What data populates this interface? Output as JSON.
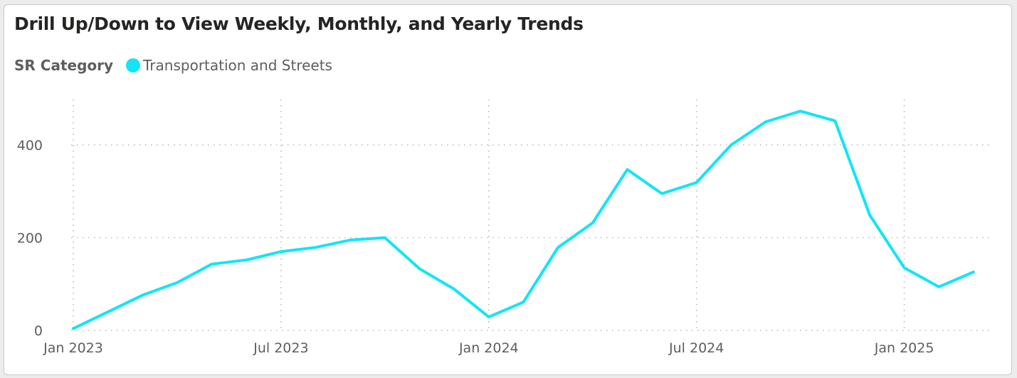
{
  "chart_data": {
    "type": "line",
    "title": "Drill Up/Down to View Weekly, Monthly, and Yearly Trends",
    "legend_title": "SR Category",
    "legend_position": "top-left",
    "grid": true,
    "x_tick_labels": [
      "Jan 2023",
      "Jul 2023",
      "Jan 2024",
      "Jul 2024",
      "Jan 2025"
    ],
    "y_ticks": [
      0,
      200,
      400
    ],
    "ylim": [
      0,
      500
    ],
    "x": [
      "2023-01",
      "2023-02",
      "2023-03",
      "2023-04",
      "2023-05",
      "2023-06",
      "2023-07",
      "2023-08",
      "2023-09",
      "2023-10",
      "2023-11",
      "2023-12",
      "2024-01",
      "2024-02",
      "2024-03",
      "2024-04",
      "2024-05",
      "2024-06",
      "2024-07",
      "2024-08",
      "2024-09",
      "2024-10",
      "2024-11",
      "2024-12",
      "2025-01",
      "2025-02",
      "2025-03"
    ],
    "series": [
      {
        "name": "Transportation and Streets",
        "color": "#12E5F5",
        "values": [
          4,
          40,
          76,
          103,
          143,
          152,
          170,
          179,
          195,
          200,
          133,
          89,
          29,
          61,
          179,
          232,
          347,
          295,
          319,
          400,
          450,
          473,
          452,
          249,
          135,
          94,
          126
        ]
      }
    ]
  }
}
